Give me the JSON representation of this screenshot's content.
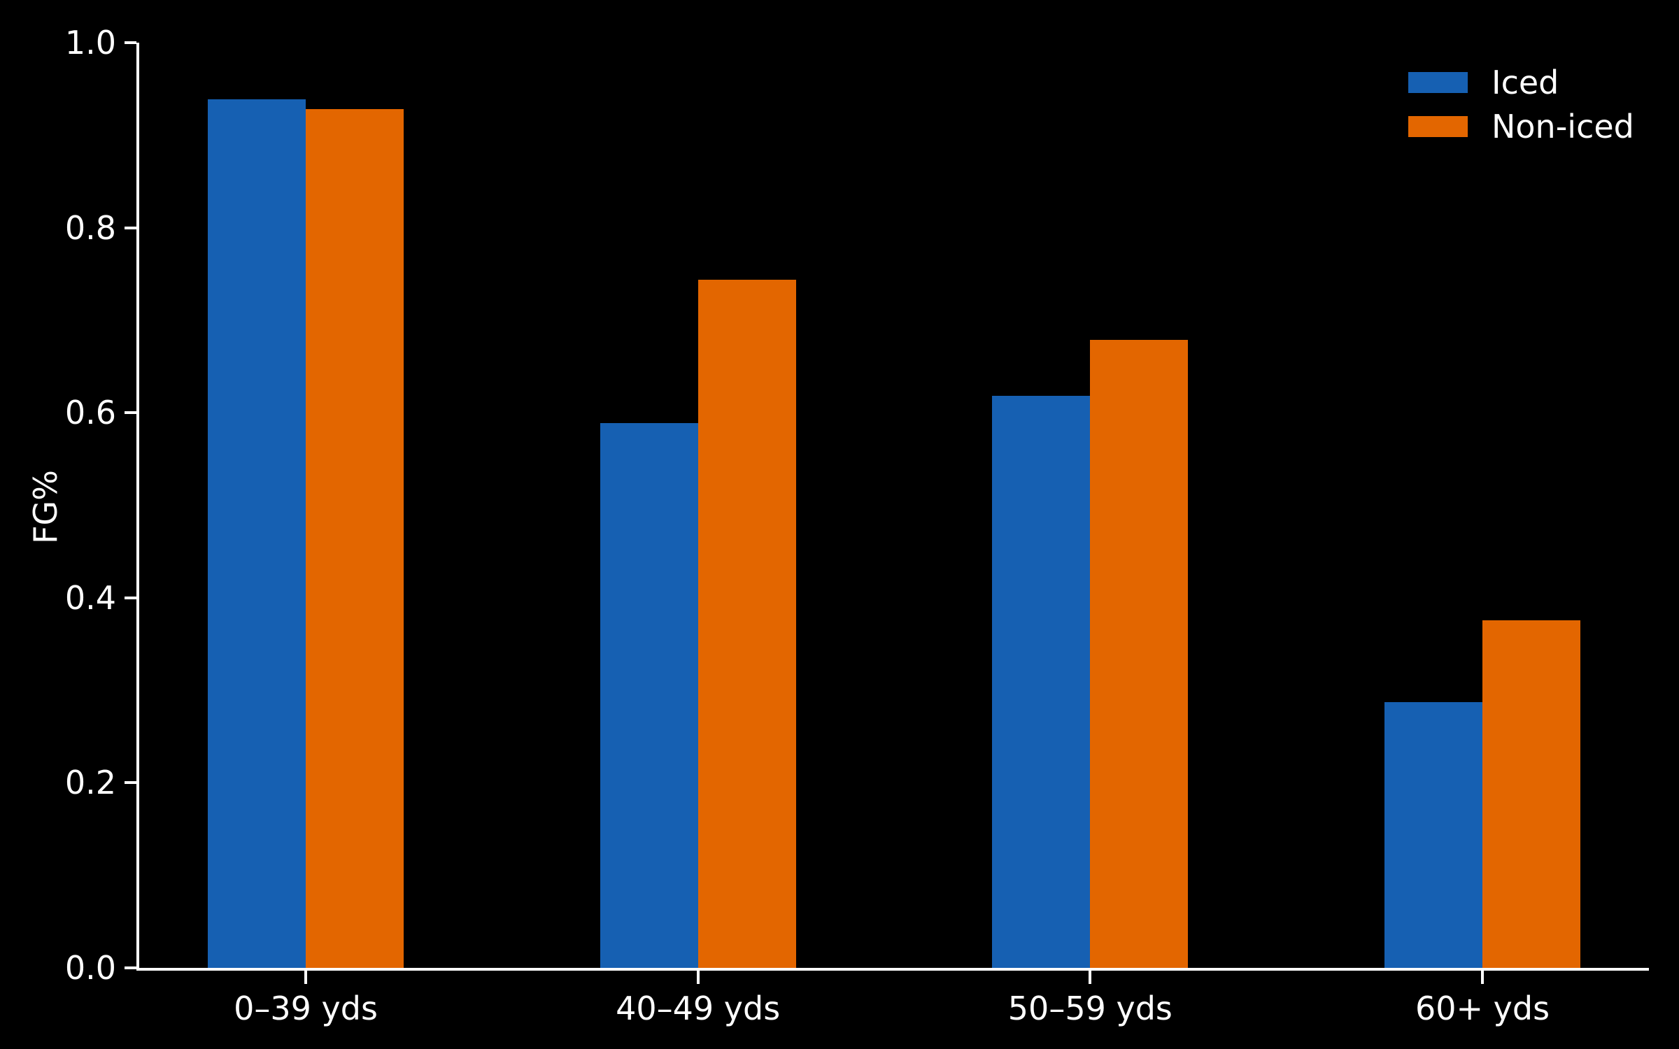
{
  "chart_data": {
    "type": "bar",
    "title": "",
    "categories": [
      "0–39 yds",
      "40–49 yds",
      "50–59 yds",
      "60+ yds"
    ],
    "series": [
      {
        "name": "Iced",
        "color": "#1660B2",
        "values": [
          0.939,
          0.589,
          0.618,
          0.287
        ]
      },
      {
        "name": "Non-iced",
        "color": "#E36600",
        "values": [
          0.928,
          0.744,
          0.679,
          0.376
        ]
      }
    ],
    "xlabel": "",
    "ylabel": "FG%",
    "ylim": [
      0.0,
      1.0
    ],
    "yticks": [
      "0.0",
      "0.2",
      "0.4",
      "0.6",
      "0.8",
      "1.0"
    ],
    "grid": false,
    "legend_position": "upper right",
    "colors": {
      "background": "#000000",
      "text": "#ffffff",
      "axis": "#ffffff"
    }
  }
}
